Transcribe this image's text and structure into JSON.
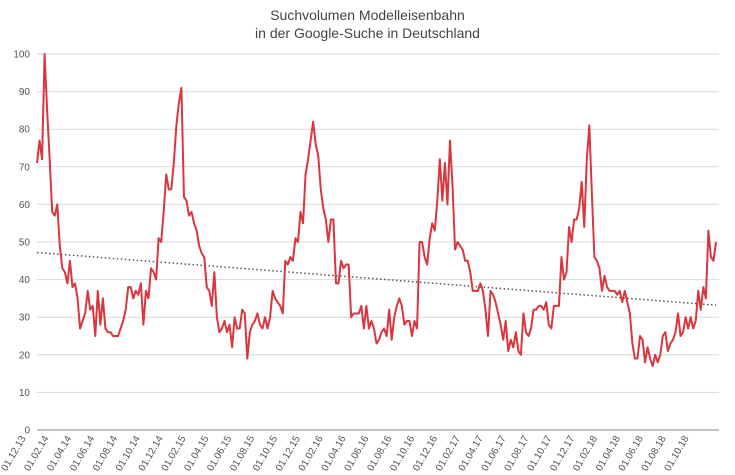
{
  "chart_data": {
    "type": "line",
    "title": [
      "Suchvolumen Modelleisenbahn",
      "in der Google-Suche in Deutschland"
    ],
    "xlabel": "",
    "ylabel": "",
    "ylim": [
      0,
      100
    ],
    "yticks": [
      0,
      10,
      20,
      30,
      40,
      50,
      60,
      70,
      80,
      90,
      100
    ],
    "x_tick_labels": [
      "01.12.13",
      "01.02.14",
      "01.04.14",
      "01.06.14",
      "01.08.14",
      "01.10.14",
      "01.12.14",
      "01.02.15",
      "01.04.15",
      "01.06.15",
      "01.08.15",
      "01.10.15",
      "01.12.15",
      "01.02.16",
      "01.04.16",
      "01.06.16",
      "01.08.16",
      "01.10.16",
      "01.12.16",
      "01.02.17",
      "01.04.17",
      "01.06.17",
      "01.08.17",
      "01.10.17",
      "01.12.17",
      "01.02.18",
      "01.04.18",
      "01.06.18",
      "01.08.18",
      "01.10.18"
    ],
    "grid": true,
    "legend": "none",
    "colors": {
      "series": "#d9363e",
      "trend": "#555555",
      "grid": "#d9d9d9"
    },
    "series": [
      {
        "style": "line",
        "values": [
          71,
          77,
          72,
          100,
          85,
          72,
          58,
          57,
          60,
          49,
          43,
          42,
          39,
          45,
          38,
          39,
          35,
          27,
          29,
          31,
          37,
          32,
          33,
          25,
          37,
          28,
          35,
          27,
          26,
          26,
          25,
          25,
          25,
          27,
          29,
          32,
          38,
          38,
          35,
          37,
          36,
          39,
          28,
          37,
          35,
          43,
          42,
          40,
          51,
          50,
          58,
          68,
          64,
          64,
          71,
          81,
          87,
          91,
          62,
          61,
          57,
          58,
          55,
          53,
          49,
          47,
          46,
          38,
          37,
          33,
          42,
          30,
          26,
          27,
          29,
          26,
          28,
          22,
          30,
          27,
          27,
          32,
          31,
          19,
          26,
          28,
          29,
          31,
          28,
          27,
          30,
          27,
          30,
          37,
          35,
          34,
          33,
          31,
          45,
          44,
          46,
          45,
          51,
          50,
          58,
          55,
          68,
          72,
          77,
          82,
          76,
          73,
          64,
          59,
          56,
          50,
          56,
          56,
          39,
          39,
          45,
          43,
          44,
          44,
          30,
          31,
          31,
          31,
          33,
          27,
          33,
          27,
          29,
          27,
          23,
          24,
          26,
          27,
          25,
          32,
          24,
          30,
          33,
          35,
          33,
          28,
          29,
          29,
          25,
          29,
          27,
          50,
          50,
          46,
          44,
          51,
          55,
          53,
          61,
          72,
          61,
          71,
          60,
          77,
          65,
          48,
          50,
          49,
          48,
          45,
          45,
          42,
          37,
          37,
          37,
          39,
          37,
          32,
          25,
          37,
          36,
          34,
          31,
          28,
          24,
          29,
          21,
          24,
          22,
          26,
          21,
          20,
          31,
          26,
          25,
          27,
          32,
          32,
          33,
          33,
          32,
          34,
          28,
          27,
          33,
          33,
          33,
          46,
          40,
          42,
          54,
          50,
          56,
          56,
          59,
          66,
          54,
          72,
          81,
          63,
          46,
          45,
          43,
          37,
          41,
          38,
          37,
          37,
          37,
          36,
          37,
          34,
          37,
          34,
          31,
          23,
          19,
          19,
          25,
          24,
          18,
          22,
          19,
          17,
          20,
          18,
          20,
          25,
          26,
          21,
          23,
          24,
          26,
          31,
          25,
          26,
          30,
          27,
          30,
          27,
          29,
          37,
          32,
          38,
          35,
          53,
          46,
          45,
          50
        ]
      },
      {
        "style": "dotted-trendline",
        "values": [
          47.2,
          33.2
        ]
      }
    ]
  }
}
